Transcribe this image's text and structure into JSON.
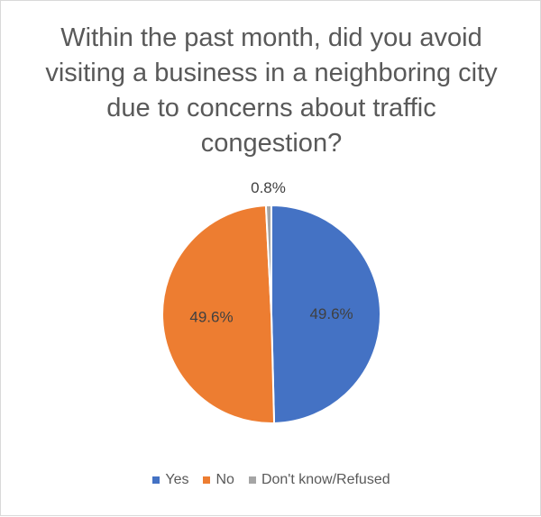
{
  "chart_data": {
    "type": "pie",
    "title": "Within the past month, did you avoid visiting a business in a neighboring city due to concerns about traffic congestion?",
    "categories": [
      "Yes",
      "No",
      "Don't know/Refused"
    ],
    "values": [
      49.6,
      49.6,
      0.8
    ],
    "value_labels": [
      "49.6%",
      "49.6%",
      "0.8%"
    ],
    "colors": [
      "#4472C4",
      "#ED7D31",
      "#A5A5A5"
    ],
    "legend_position": "bottom"
  }
}
